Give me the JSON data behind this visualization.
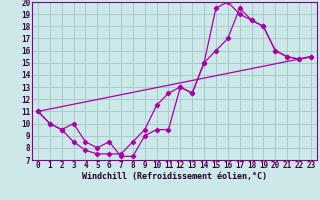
{
  "xlabel": "Windchill (Refroidissement éolien,°C)",
  "bg_color": "#cce8e8",
  "grid_color": "#aacccc",
  "line_color": "#aa00aa",
  "spine_color": "#880088",
  "tick_color": "#440044",
  "label_color": "#220022",
  "xlim": [
    -0.5,
    23.5
  ],
  "ylim": [
    7,
    20
  ],
  "xticks": [
    0,
    1,
    2,
    3,
    4,
    5,
    6,
    7,
    8,
    9,
    10,
    11,
    12,
    13,
    14,
    15,
    16,
    17,
    18,
    19,
    20,
    21,
    22,
    23
  ],
  "yticks": [
    7,
    8,
    9,
    10,
    11,
    12,
    13,
    14,
    15,
    16,
    17,
    18,
    19,
    20
  ],
  "line1_x": [
    0,
    1,
    2,
    3,
    4,
    5,
    6,
    7,
    8,
    9,
    10,
    11,
    12,
    13,
    14,
    15,
    16,
    17,
    18,
    19,
    20,
    21,
    22,
    23
  ],
  "line1_y": [
    11,
    10,
    9.5,
    8.5,
    7.8,
    7.5,
    7.5,
    7.5,
    8.5,
    9.5,
    11.5,
    12.5,
    13.0,
    12.5,
    15.0,
    16.0,
    17.0,
    19.5,
    18.5,
    18.0,
    16.0,
    15.5,
    15.3,
    15.5
  ],
  "line2_x": [
    0,
    1,
    2,
    3,
    4,
    5,
    6,
    7,
    8,
    9,
    10,
    11,
    12,
    13,
    14,
    15,
    16,
    17,
    18,
    19,
    20,
    21,
    22,
    23
  ],
  "line2_y": [
    11,
    10,
    9.5,
    10,
    8.5,
    8.0,
    8.5,
    7.3,
    7.3,
    9.0,
    9.5,
    9.5,
    13.0,
    12.5,
    15.0,
    19.5,
    20.0,
    19.0,
    18.5,
    18.0,
    16.0,
    15.5,
    15.3,
    15.5
  ],
  "line3_x": [
    0,
    23
  ],
  "line3_y": [
    11,
    15.5
  ],
  "tick_fontsize": 5.5,
  "xlabel_fontsize": 6.0
}
